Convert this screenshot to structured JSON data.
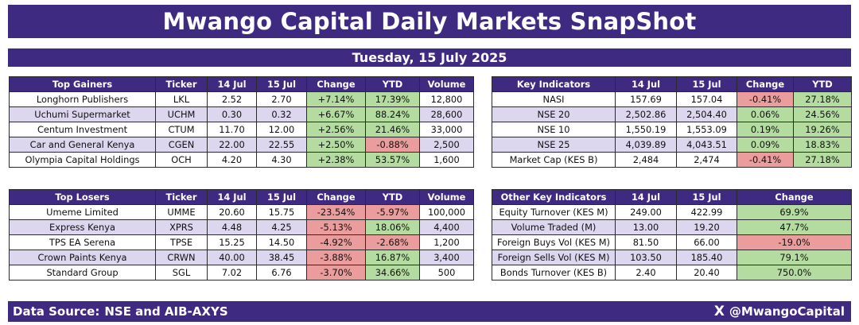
{
  "title": "Mwango Capital Daily Markets SnapShot",
  "date": "Tuesday, 15 July 2025",
  "gainers": {
    "headers": [
      "Top Gainers",
      "Ticker",
      "14 Jul",
      "15 Jul",
      "Change",
      "YTD",
      "Volume"
    ],
    "rows": [
      [
        "Longhorn Publishers",
        "LKL",
        "2.52",
        "2.70",
        "+7.14%",
        "17.39%",
        "12,800"
      ],
      [
        "Uchumi Supermarket",
        "UCHM",
        "0.30",
        "0.32",
        "+6.67%",
        "88.24%",
        "28,600"
      ],
      [
        "Centum Investment",
        "CTUM",
        "11.70",
        "12.00",
        "+2.56%",
        "21.46%",
        "33,000"
      ],
      [
        "Car and General Kenya",
        "CGEN",
        "22.00",
        "22.55",
        "+2.50%",
        "-0.88%",
        "2,500"
      ],
      [
        "Olympia Capital Holdings",
        "OCH",
        "4.20",
        "4.30",
        "+2.38%",
        "53.57%",
        "1,600"
      ]
    ]
  },
  "losers": {
    "headers": [
      "Top Losers",
      "Ticker",
      "14 Jul",
      "15 Jul",
      "Change",
      "YTD",
      "Volume"
    ],
    "rows": [
      [
        "Umeme Limited",
        "UMME",
        "20.60",
        "15.75",
        "-23.54%",
        "-5.97%",
        "100,000"
      ],
      [
        "Express Kenya",
        "XPRS",
        "4.48",
        "4.25",
        "-5.13%",
        "18.06%",
        "4,400"
      ],
      [
        "TPS EA Serena",
        "TPSE",
        "15.25",
        "14.50",
        "-4.92%",
        "-2.68%",
        "1,200"
      ],
      [
        "Crown Paints Kenya",
        "CRWN",
        "40.00",
        "38.45",
        "-3.88%",
        "16.87%",
        "3,400"
      ],
      [
        "Standard Group",
        "SGL",
        "7.02",
        "6.76",
        "-3.70%",
        "34.66%",
        "500"
      ]
    ]
  },
  "key_indicators": {
    "headers": [
      "Key Indicators",
      "14 Jul",
      "15 Jul",
      "Change",
      "YTD"
    ],
    "rows": [
      [
        "NASI",
        "157.69",
        "157.04",
        "-0.41%",
        "27.18%"
      ],
      [
        "NSE 20",
        "2,502.86",
        "2,504.40",
        "0.06%",
        "24.56%"
      ],
      [
        "NSE 10",
        "1,550.19",
        "1,553.09",
        "0.19%",
        "19.26%"
      ],
      [
        "NSE 25",
        "4,039.89",
        "4,043.51",
        "0.09%",
        "18.83%"
      ],
      [
        "Market Cap (KES B)",
        "2,484",
        "2,474",
        "-0.41%",
        "27.18%"
      ]
    ]
  },
  "other_key_indicators": {
    "headers": [
      "Other Key Indicators",
      "14 Jul",
      "15 Jul",
      "Change"
    ],
    "rows": [
      [
        "Equity Turnover (KES M)",
        "249.00",
        "422.99",
        "69.9%"
      ],
      [
        "Volume Traded (M)",
        "13.00",
        "19.20",
        "47.7%"
      ],
      [
        "Foreign Buys Vol (KES M)",
        "81.50",
        "66.00",
        "-19.0%"
      ],
      [
        "Foreign Sells Vol (KES M)",
        "103.50",
        "185.40",
        "79.1%"
      ],
      [
        "Bonds Turnover (KES B)",
        "2.40",
        "20.40",
        "750.0%"
      ]
    ]
  },
  "footer": {
    "source_label": "Data Source:",
    "source_value": "NSE and AIB-AXYS",
    "x_icon": "X",
    "handle": "@MwangoCapital"
  },
  "colors": {
    "brand_purple": "#3f2a82",
    "row_alt": "#ddd6ef",
    "positive": "#b4dca0",
    "negative": "#eb9d9d"
  }
}
